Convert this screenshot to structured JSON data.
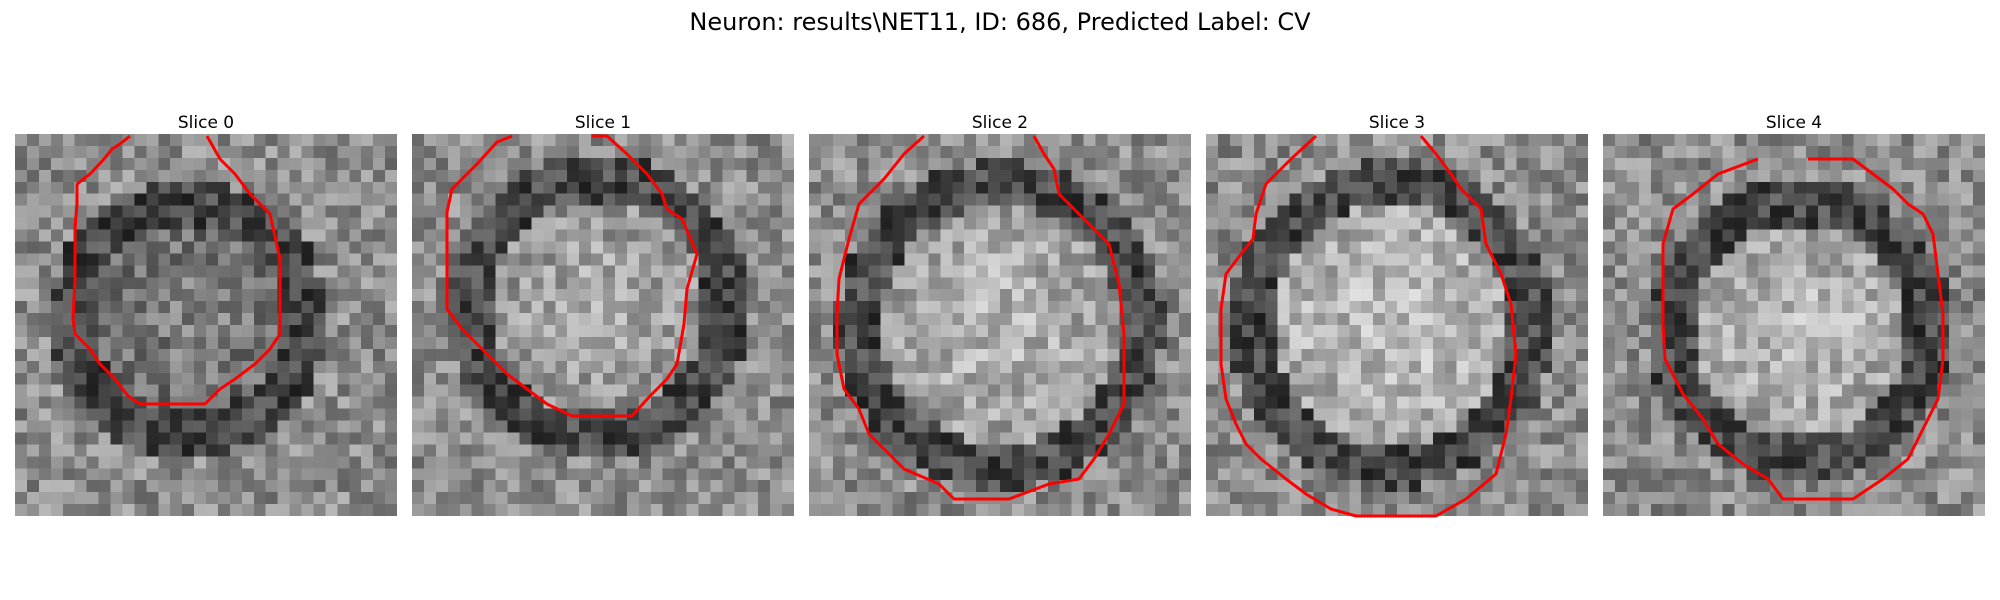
{
  "title": "Neuron: results\\NET11, ID: 686, Predicted Label: CV",
  "panels": [
    {
      "label": "Slice 0"
    },
    {
      "label": "Slice 1"
    },
    {
      "label": "Slice 2"
    },
    {
      "label": "Slice 3"
    },
    {
      "label": "Slice 4"
    }
  ],
  "colors": {
    "contour": "#ff0000",
    "background": "#ffffff"
  }
}
